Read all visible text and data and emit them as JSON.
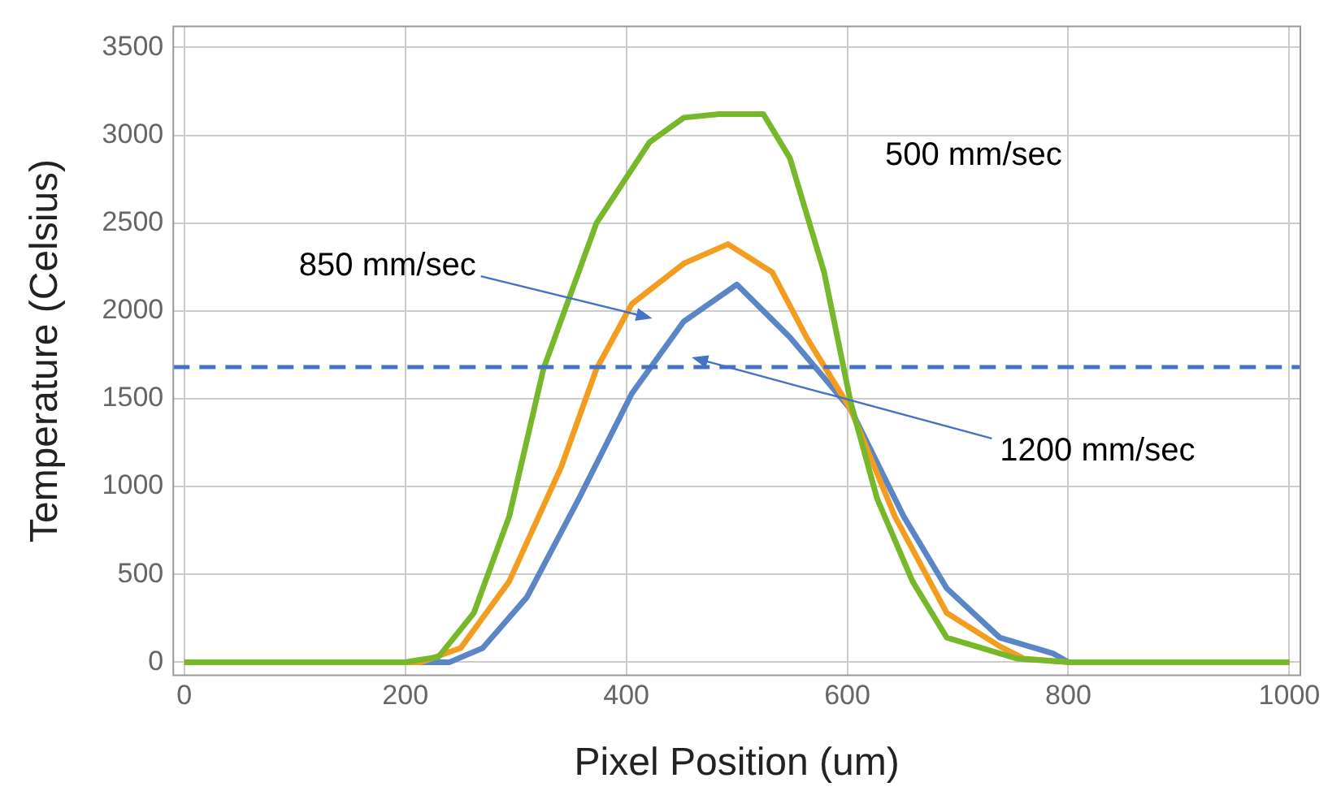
{
  "chart_data": {
    "type": "line",
    "xlabel": "Pixel Position (um)",
    "ylabel": "Temperature (Celsius)",
    "xlim": [
      -10,
      1010
    ],
    "xticks": [
      0,
      200,
      400,
      600,
      800,
      1000
    ],
    "ylim": [
      -75,
      3620
    ],
    "yticks": [
      0,
      500,
      1000,
      1500,
      2000,
      2500,
      3000,
      3500
    ],
    "grid": true,
    "legend": false,
    "marker": "none",
    "line_style": "solid",
    "series": [
      {
        "color": "#77b82a",
        "x": [
          0,
          100,
          200,
          230,
          262,
          294,
          325,
          373,
          421,
          452,
          484,
          524,
          548,
          579,
          603,
          627,
          659,
          690,
          754,
          800,
          900,
          1000
        ],
        "values": [
          0,
          0,
          0,
          30,
          280,
          830,
          1670,
          2500,
          2960,
          3100,
          3120,
          3120,
          2870,
          2220,
          1480,
          930,
          460,
          140,
          20,
          0,
          0,
          0
        ]
      },
      {
        "color": "#f39c1f",
        "x": [
          0,
          100,
          200,
          214,
          250,
          294,
          341,
          373,
          405,
          452,
          492,
          532,
          563,
          603,
          643,
          690,
          738,
          760,
          800,
          900,
          1000
        ],
        "values": [
          0,
          0,
          0,
          0,
          80,
          460,
          1110,
          1670,
          2040,
          2270,
          2380,
          2220,
          1850,
          1440,
          830,
          280,
          90,
          20,
          0,
          0,
          0
        ]
      },
      {
        "color": "#5b86c5",
        "x": [
          0,
          100,
          200,
          240,
          270,
          310,
          357,
          405,
          452,
          500,
          548,
          603,
          651,
          690,
          738,
          786,
          800,
          900,
          1000
        ],
        "values": [
          0,
          0,
          0,
          0,
          80,
          370,
          930,
          1530,
          1940,
          2150,
          1850,
          1440,
          830,
          420,
          140,
          50,
          0,
          0,
          0
        ]
      }
    ],
    "ref_lines": [
      {
        "axis": "y",
        "value": 1680,
        "color": "#4472c4",
        "line_style": "dashed"
      }
    ],
    "annotations": [
      "500 mm/sec",
      "850 mm/sec",
      "1200 mm/sec"
    ]
  }
}
